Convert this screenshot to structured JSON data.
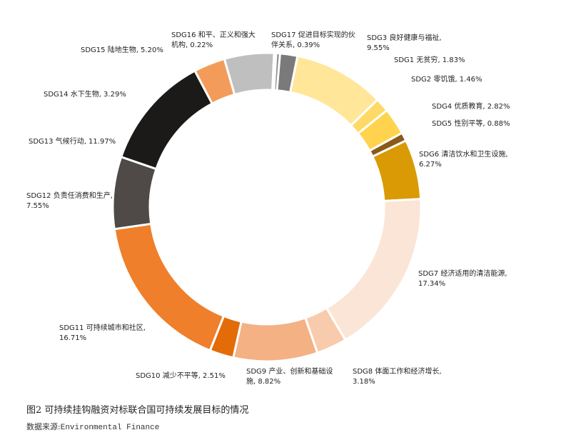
{
  "chart_data": {
    "type": "pie",
    "donut": true,
    "slices": [
      {
        "label": "SDG1 无贫穷",
        "value": 1.83,
        "value_text": "1.83%",
        "color": "#7a7a7a"
      },
      {
        "label": "SDG3 良好健康与福祉",
        "value": 9.55,
        "value_text": "9.55%",
        "color": "#ffe699"
      },
      {
        "label": "SDG2 零饥饿",
        "value": 1.46,
        "value_text": "1.46%",
        "color": "#ffd966"
      },
      {
        "label": "SDG4 优质教育",
        "value": 2.82,
        "value_text": "2.82%",
        "color": "#ffd34d"
      },
      {
        "label": "SDG5 性别平等",
        "value": 0.88,
        "value_text": "0.88%",
        "color": "#8a5a19"
      },
      {
        "label": "SDG6 清洁饮水和卫生设施",
        "value": 6.27,
        "value_text": "6.27%",
        "color": "#d99a05"
      },
      {
        "label": "SDG7 经济适用的清洁能源",
        "value": 17.34,
        "value_text": "17.34%",
        "color": "#fbe5d6"
      },
      {
        "label": "SDG8 体面工作和经济增长",
        "value": 3.18,
        "value_text": "3.18%",
        "color": "#f8cbad"
      },
      {
        "label": "SDG9 产业、创新和基础设施",
        "value": 8.82,
        "value_text": "8.82%",
        "color": "#f4b183"
      },
      {
        "label": "SDG10 减少不平等",
        "value": 2.51,
        "value_text": "2.51%",
        "color": "#e36c09"
      },
      {
        "label": "SDG11 可持续城市和社区",
        "value": 16.71,
        "value_text": "16.71%",
        "color": "#ef7f2a"
      },
      {
        "label": "SDG12 负责任消费和生产",
        "value": 7.55,
        "value_text": "7.55%",
        "color": "#4f4a47"
      },
      {
        "label": "SDG13 气候行动",
        "value": 11.97,
        "value_text": "11.97%",
        "color": "#1c1a19"
      },
      {
        "label": "SDG14 水下生物",
        "value": 3.29,
        "value_text": "3.29%",
        "color": "#f39c5a"
      },
      {
        "label": "SDG15 陆地生物",
        "value": 5.2,
        "value_text": "5.20%",
        "color": "#bfbfbf"
      },
      {
        "label": "SDG16 和平、正义和强大机构",
        "value": 0.22,
        "value_text": "0.22%",
        "color": "#f2b632"
      },
      {
        "label": "SDG17 促进目标实现的伙伴关系",
        "value": 0.39,
        "value_text": "0.39%",
        "color": "#8c8c8c"
      }
    ]
  },
  "labels": {
    "sdg1": "SDG1 无贫穷, 1.83%",
    "sdg3": [
      "SDG3 良好健康与福祉,",
      "9.55%"
    ],
    "sdg2": "SDG2 零饥饿, 1.46%",
    "sdg4": "SDG4 优质教育, 2.82%",
    "sdg5": "SDG5 性别平等, 0.88%",
    "sdg6": [
      "SDG6 清洁饮水和卫生设施,",
      "6.27%"
    ],
    "sdg7": [
      "SDG7 经济适用的清洁能源,",
      "17.34%"
    ],
    "sdg8": [
      "SDG8 体面工作和经济增长,",
      "3.18%"
    ],
    "sdg9": [
      "SDG9 产业、创新和基础设",
      "施, 8.82%"
    ],
    "sdg10": "SDG10 减少不平等, 2.51%",
    "sdg11": [
      "SDG11 可持续城市和社区,",
      "16.71%"
    ],
    "sdg12": [
      "SDG12 负责任消费和生产,",
      "7.55%"
    ],
    "sdg13": "SDG13 气候行动, 11.97%",
    "sdg14": "SDG14 水下生物, 3.29%",
    "sdg15": "SDG15 陆地生物, 5.20%",
    "sdg16": [
      "SDG16 和平、正义和强大",
      "机构, 0.22%"
    ],
    "sdg17": [
      "SDG17 促进目标实现的伙",
      "伴关系, 0.39%"
    ]
  },
  "caption": "图2 可持续挂钩融资对标联合国可持续发展目标的情况",
  "source_prefix": "数据来源:",
  "source_text": "Environmental Finance"
}
